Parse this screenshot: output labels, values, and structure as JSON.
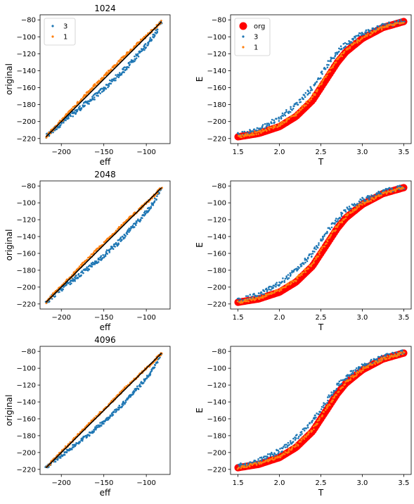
{
  "colors": {
    "series_3": "#1f77b4",
    "series_1": "#ff7f0e",
    "org": "#ff0000",
    "identity": "#000000"
  },
  "chart_data": [
    {
      "type": "scatter",
      "title": "1024",
      "xlabel": "eff",
      "ylabel": "original",
      "xlim": [
        -225,
        -72
      ],
      "ylim": [
        -226,
        -74
      ],
      "xticks": [
        -200,
        -150,
        -100
      ],
      "yticks": [
        -220,
        -200,
        -180,
        -160,
        -140,
        -120,
        -100,
        -80
      ],
      "legend": {
        "placement": "top-left",
        "entries": [
          "3",
          "1"
        ]
      },
      "series": [
        {
          "name": "3",
          "x": [
            -218,
            -205,
            -190,
            -175,
            -160,
            -145,
            -130,
            -115,
            -100,
            -90,
            -82
          ],
          "y": [
            -218,
            -206,
            -194,
            -182,
            -170,
            -157,
            -143,
            -127,
            -110,
            -96,
            -82
          ],
          "spread": 3.0
        },
        {
          "name": "1",
          "x": [
            -218,
            -205,
            -190,
            -175,
            -160,
            -145,
            -130,
            -115,
            -100,
            -90,
            -82
          ],
          "y": [
            -218,
            -204,
            -188,
            -172,
            -157,
            -142,
            -127,
            -113,
            -99,
            -90,
            -82
          ],
          "spread": 1.6
        }
      ],
      "reference_line": [
        [
          -218,
          -218
        ],
        [
          -82,
          -82
        ]
      ]
    },
    {
      "type": "scatter",
      "xlabel": "T",
      "ylabel": "E",
      "xlim": [
        1.41,
        3.59
      ],
      "ylim": [
        -226,
        -74
      ],
      "xticks": [
        "1.5",
        "2.0",
        "2.5",
        "3.0",
        "3.5"
      ],
      "yticks": [
        -220,
        -200,
        -180,
        -160,
        -140,
        -120,
        -100,
        -80
      ],
      "legend": {
        "placement": "top-left",
        "entries": [
          "org",
          "3",
          "1"
        ]
      },
      "series": [
        {
          "name": "org",
          "x": [
            1.5,
            1.75,
            2.0,
            2.2,
            2.4,
            2.5,
            2.6,
            2.7,
            2.8,
            3.0,
            3.25,
            3.5
          ],
          "y": [
            -218,
            -214,
            -206,
            -194,
            -175,
            -160,
            -145,
            -130,
            -118,
            -102,
            -89,
            -82
          ]
        },
        {
          "name": "3",
          "x": [
            1.5,
            1.75,
            2.0,
            2.2,
            2.4,
            2.5,
            2.6,
            2.7,
            2.8,
            3.0,
            3.25,
            3.5
          ],
          "y": [
            -216,
            -209,
            -196,
            -180,
            -160,
            -145,
            -130,
            -118,
            -108,
            -96,
            -87,
            -81
          ]
        },
        {
          "name": "1",
          "x": [
            1.5,
            1.75,
            2.0,
            2.2,
            2.4,
            2.5,
            2.6,
            2.7,
            2.8,
            3.0,
            3.25,
            3.5
          ],
          "y": [
            -218,
            -213,
            -204,
            -191,
            -171,
            -156,
            -141,
            -127,
            -116,
            -101,
            -89,
            -82
          ]
        }
      ]
    },
    {
      "type": "scatter",
      "title": "2048",
      "xlabel": "eff",
      "ylabel": "original",
      "xlim": [
        -225,
        -72
      ],
      "ylim": [
        -226,
        -74
      ],
      "xticks": [
        -200,
        -150,
        -100
      ],
      "yticks": [
        -220,
        -200,
        -180,
        -160,
        -140,
        -120,
        -100,
        -80
      ],
      "series": [
        {
          "name": "3",
          "x": [
            -218,
            -205,
            -190,
            -175,
            -160,
            -145,
            -130,
            -115,
            -100,
            -90,
            -82
          ],
          "y": [
            -218,
            -206,
            -195,
            -183,
            -171,
            -158,
            -144,
            -128,
            -111,
            -97,
            -82
          ],
          "spread": 2.6
        },
        {
          "name": "1",
          "x": [
            -218,
            -205,
            -190,
            -175,
            -160,
            -145,
            -130,
            -115,
            -100,
            -90,
            -82
          ],
          "y": [
            -218,
            -204,
            -189,
            -173,
            -158,
            -143,
            -128,
            -114,
            -100,
            -91,
            -82
          ],
          "spread": 1.4
        }
      ],
      "reference_line": [
        [
          -218,
          -218
        ],
        [
          -82,
          -82
        ]
      ]
    },
    {
      "type": "scatter",
      "xlabel": "T",
      "ylabel": "E",
      "xlim": [
        1.41,
        3.59
      ],
      "ylim": [
        -226,
        -74
      ],
      "xticks": [
        "1.5",
        "2.0",
        "2.5",
        "3.0",
        "3.5"
      ],
      "yticks": [
        -220,
        -200,
        -180,
        -160,
        -140,
        -120,
        -100,
        -80
      ],
      "series": [
        {
          "name": "org",
          "x": [
            1.5,
            1.75,
            2.0,
            2.2,
            2.4,
            2.5,
            2.6,
            2.7,
            2.8,
            3.0,
            3.25,
            3.5
          ],
          "y": [
            -218,
            -214,
            -206,
            -194,
            -175,
            -160,
            -145,
            -130,
            -118,
            -102,
            -89,
            -82
          ]
        },
        {
          "name": "3",
          "x": [
            1.5,
            1.75,
            2.0,
            2.2,
            2.4,
            2.5,
            2.6,
            2.7,
            2.8,
            3.0,
            3.25,
            3.5
          ],
          "y": [
            -216,
            -209,
            -196,
            -180,
            -160,
            -146,
            -131,
            -119,
            -109,
            -97,
            -87,
            -81
          ]
        },
        {
          "name": "1",
          "x": [
            1.5,
            1.75,
            2.0,
            2.2,
            2.4,
            2.5,
            2.6,
            2.7,
            2.8,
            3.0,
            3.25,
            3.5
          ],
          "y": [
            -218,
            -213,
            -204,
            -191,
            -172,
            -157,
            -142,
            -128,
            -116,
            -101,
            -89,
            -82
          ]
        }
      ]
    },
    {
      "type": "scatter",
      "title": "4096",
      "xlabel": "eff",
      "ylabel": "original",
      "xlim": [
        -225,
        -72
      ],
      "ylim": [
        -226,
        -74
      ],
      "xticks": [
        -200,
        -150,
        -100
      ],
      "yticks": [
        -220,
        -200,
        -180,
        -160,
        -140,
        -120,
        -100,
        -80
      ],
      "series": [
        {
          "name": "3",
          "x": [
            -218,
            -205,
            -190,
            -175,
            -160,
            -145,
            -130,
            -115,
            -100,
            -90,
            -82
          ],
          "y": [
            -218,
            -207,
            -196,
            -184,
            -172,
            -159,
            -145,
            -129,
            -112,
            -98,
            -82
          ],
          "spread": 2.2
        },
        {
          "name": "1",
          "x": [
            -218,
            -205,
            -190,
            -175,
            -160,
            -145,
            -130,
            -115,
            -100,
            -90,
            -82
          ],
          "y": [
            -218,
            -204,
            -189,
            -174,
            -159,
            -144,
            -129,
            -114,
            -100,
            -91,
            -82
          ],
          "spread": 1.2
        }
      ],
      "reference_line": [
        [
          -218,
          -218
        ],
        [
          -82,
          -82
        ]
      ]
    },
    {
      "type": "scatter",
      "xlabel": "T",
      "ylabel": "E",
      "xlim": [
        1.41,
        3.59
      ],
      "ylim": [
        -226,
        -74
      ],
      "xticks": [
        "1.5",
        "2.0",
        "2.5",
        "3.0",
        "3.5"
      ],
      "yticks": [
        -220,
        -200,
        -180,
        -160,
        -140,
        -120,
        -100,
        -80
      ],
      "series": [
        {
          "name": "org",
          "x": [
            1.5,
            1.75,
            2.0,
            2.2,
            2.4,
            2.5,
            2.6,
            2.7,
            2.8,
            3.0,
            3.25,
            3.5
          ],
          "y": [
            -218,
            -214,
            -206,
            -194,
            -175,
            -160,
            -145,
            -130,
            -118,
            -102,
            -89,
            -82
          ]
        },
        {
          "name": "3",
          "x": [
            1.5,
            1.75,
            2.0,
            2.2,
            2.4,
            2.5,
            2.6,
            2.7,
            2.8,
            3.0,
            3.25,
            3.5
          ],
          "y": [
            -216,
            -210,
            -198,
            -183,
            -163,
            -149,
            -134,
            -121,
            -110,
            -97,
            -87,
            -81
          ]
        },
        {
          "name": "1",
          "x": [
            1.5,
            1.75,
            2.0,
            2.2,
            2.4,
            2.5,
            2.6,
            2.7,
            2.8,
            3.0,
            3.25,
            3.5
          ],
          "y": [
            -218,
            -213,
            -205,
            -192,
            -173,
            -158,
            -143,
            -129,
            -117,
            -101,
            -89,
            -82
          ]
        }
      ]
    }
  ]
}
